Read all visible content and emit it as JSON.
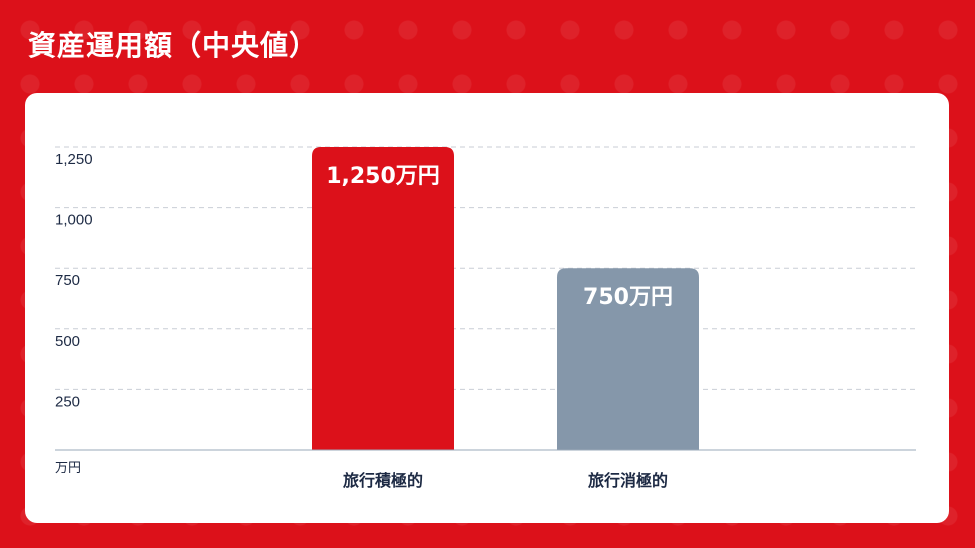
{
  "header": {
    "title": "資産運用額（中央値）"
  },
  "colors": {
    "background": "#dc111a",
    "card": "#ffffff",
    "axis_text": "#1d2a44",
    "grid": "#c9ced6"
  },
  "chart_data": {
    "type": "bar",
    "title": "資産運用額（中央値）",
    "ylabel": "万円",
    "xlabel": "",
    "categories": [
      "旅行積極的",
      "旅行消極的"
    ],
    "values": [
      1250,
      750
    ],
    "value_labels": [
      "1,250万円",
      "750万円"
    ],
    "bar_colors": [
      "#dc111a",
      "#8597aa"
    ],
    "yticks": [
      250,
      500,
      750,
      1000,
      1250
    ],
    "ytick_labels": [
      "250",
      "500",
      "750",
      "1,000",
      "1,250"
    ],
    "ylim": [
      0,
      1250
    ],
    "grid": true,
    "legend": "none"
  }
}
